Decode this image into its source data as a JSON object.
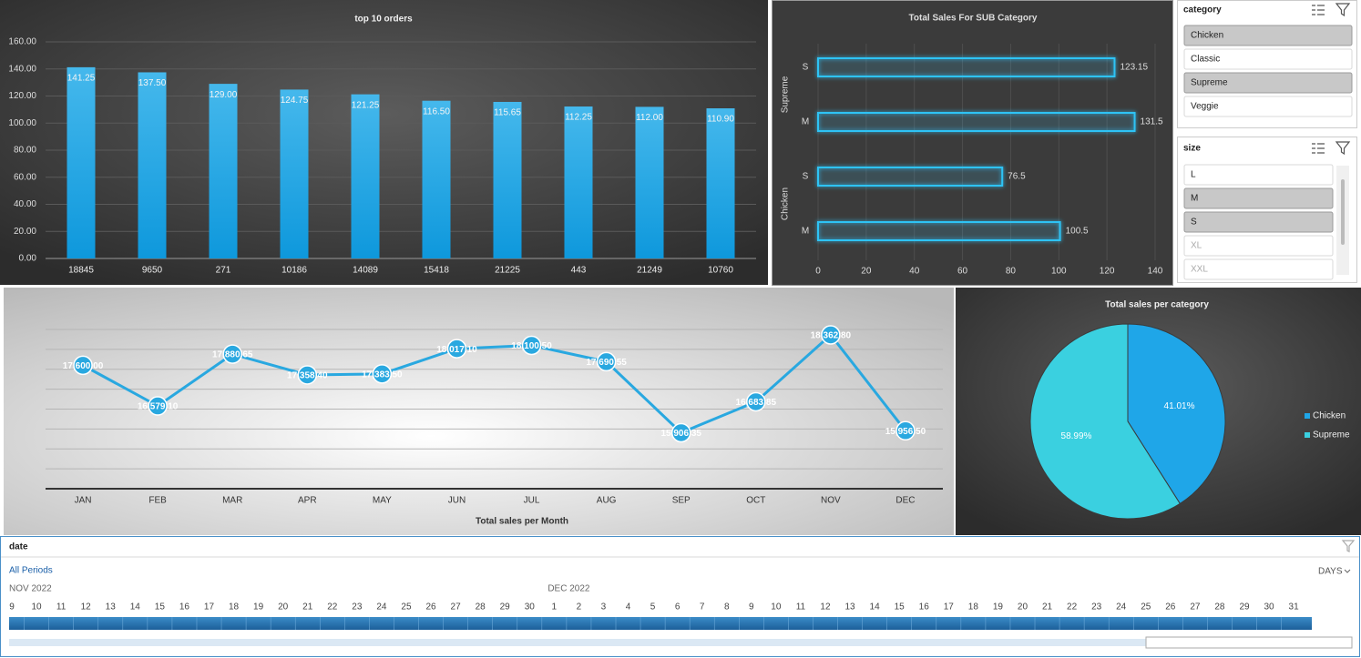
{
  "chart_data": [
    {
      "type": "bar",
      "title": "top 10 orders",
      "categories": [
        "18845",
        "9650",
        "271",
        "10186",
        "14089",
        "15418",
        "21225",
        "443",
        "21249",
        "10760"
      ],
      "values": [
        141.25,
        137.5,
        129,
        124.75,
        121.25,
        116.5,
        115.65,
        112.25,
        112,
        110.9
      ],
      "value_labels": [
        "141.25",
        "137.50",
        "129.00",
        "124.75",
        "121.25",
        "116.50",
        "115.65",
        "112.25",
        "112.00",
        "110.90"
      ],
      "color": "#1ba6e6",
      "ylim": [
        0,
        160
      ],
      "yticks": [
        {
          "value": 0,
          "label": "0.00"
        },
        {
          "value": 20,
          "label": "20.00"
        },
        {
          "value": 40,
          "label": "40.00"
        },
        {
          "value": 60,
          "label": "60.00"
        },
        {
          "value": 80,
          "label": "80.00"
        },
        {
          "value": 100,
          "label": "100.00"
        },
        {
          "value": 120,
          "label": "120.00"
        },
        {
          "value": 140,
          "label": "140.00"
        },
        {
          "value": 160,
          "label": "160.00"
        }
      ],
      "grid": true
    },
    {
      "type": "hbar",
      "title": "Total Sales For SUB Category",
      "groups": [
        {
          "name": "Supreme",
          "categories": [
            "S",
            "M"
          ],
          "values": [
            123.15,
            131.5
          ]
        },
        {
          "name": "Chicken",
          "categories": [
            "S",
            "M"
          ],
          "values": [
            76.5,
            100.5
          ]
        }
      ],
      "color": "#2ec3f5",
      "xlim": [
        0,
        140
      ],
      "xticks": [
        0,
        20,
        40,
        60,
        80,
        100,
        120,
        140
      ],
      "grid": true
    },
    {
      "type": "line",
      "title": "Total sales per Month",
      "categories": [
        "JAN",
        "FEB",
        "MAR",
        "APR",
        "MAY",
        "JUN",
        "JUL",
        "AUG",
        "SEP",
        "OCT",
        "NOV",
        "DEC"
      ],
      "values": [
        17600,
        16579.1,
        17880.65,
        17358.4,
        17383.5,
        18017.1,
        18100.5,
        17690.55,
        15906.35,
        16683.85,
        18362.8,
        15956.5
      ],
      "value_labels": [
        "17,600.00",
        "16,579.10",
        "17,880.65",
        "17,358.40",
        "17,383.50",
        "18,017.10",
        "18,100.50",
        "17,690.55",
        "15,906.35",
        "16,683.85",
        "18,362.80",
        "15,956.50"
      ],
      "color": "#29a8e0",
      "ylim": [
        14500,
        18500
      ],
      "yticks": [
        14500,
        15000,
        15500,
        16000,
        16500,
        17000,
        17500,
        18000,
        18500
      ],
      "grid": true
    },
    {
      "type": "pie",
      "title": "Total sales per category",
      "categories": [
        "Chicken",
        "Supreme"
      ],
      "values": [
        41.01,
        58.99
      ],
      "value_labels": [
        "41.01%",
        "58.99%"
      ],
      "colors": [
        "#1fa6e8",
        "#3ad0e0"
      ],
      "legend": "right"
    }
  ],
  "category_slicer": {
    "title": "category",
    "items": [
      "Chicken",
      "Classic",
      "Supreme",
      "Veggie"
    ],
    "selected": [
      true,
      false,
      true,
      false
    ],
    "available": [
      true,
      true,
      true,
      true
    ]
  },
  "size_slicer": {
    "title": "size",
    "items": [
      "L",
      "M",
      "S",
      "XL",
      "XXL"
    ],
    "selected": [
      false,
      true,
      true,
      false,
      false
    ],
    "available": [
      true,
      true,
      true,
      false,
      false
    ]
  },
  "timeline": {
    "title": "date",
    "period": "All Periods",
    "level": "DAYS",
    "months": [
      {
        "name": "NOV 2022",
        "days": [
          9,
          10,
          11,
          12,
          13,
          14,
          15,
          16,
          17,
          18,
          19,
          20,
          21,
          22,
          23,
          24,
          25,
          26,
          27,
          28,
          29,
          30
        ]
      },
      {
        "name": "DEC 2022",
        "days": [
          1,
          2,
          3,
          4,
          5,
          6,
          7,
          8,
          9,
          10,
          11,
          12,
          13,
          14,
          15,
          16,
          17,
          18,
          19,
          20,
          21,
          22,
          23,
          24,
          25,
          26,
          27,
          28,
          29,
          30,
          31
        ]
      }
    ]
  }
}
